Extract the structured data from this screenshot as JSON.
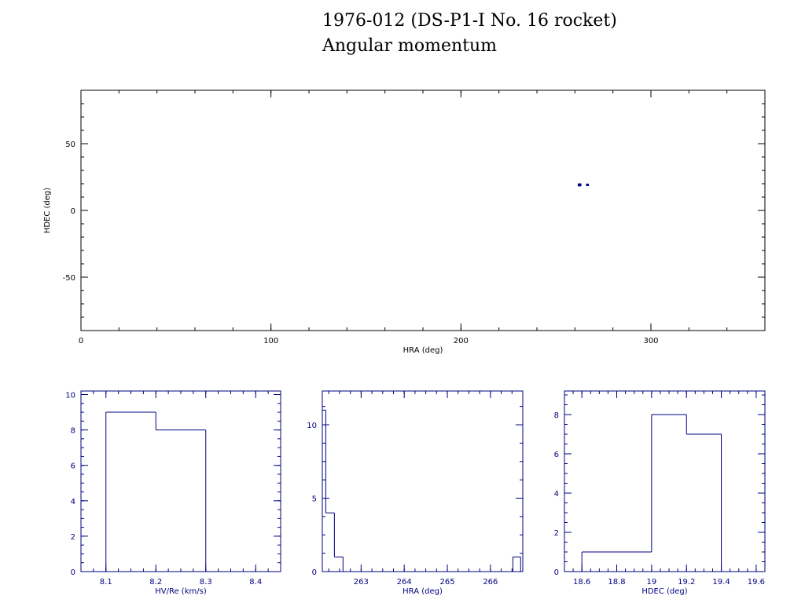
{
  "title": "1976-012 (DS-P1-I No. 16 rocket)",
  "subtitle": "Angular momentum",
  "colors": {
    "axis_main": "#000000",
    "axis_hist": "#000080",
    "data": "#000080"
  },
  "chart_data": [
    {
      "type": "scatter",
      "xlabel": "HRA (deg)",
      "ylabel": "HDEC (deg)",
      "xlim": [
        0,
        360
      ],
      "ylim": [
        -90,
        90
      ],
      "xticks": [
        0,
        100,
        200,
        300
      ],
      "yticks": [
        -50,
        0,
        50
      ],
      "points": [
        {
          "x": 262.1,
          "y": 19.0
        },
        {
          "x": 262.3,
          "y": 19.4
        },
        {
          "x": 262.5,
          "y": 19.1
        },
        {
          "x": 262.6,
          "y": 18.9
        },
        {
          "x": 262.8,
          "y": 19.3
        },
        {
          "x": 266.5,
          "y": 19.2
        },
        {
          "x": 266.7,
          "y": 19.1
        }
      ]
    },
    {
      "type": "bar",
      "xlabel": "HV/Re (km/s)",
      "xlim": [
        8.05,
        8.45
      ],
      "ylim": [
        0,
        10.2
      ],
      "xticks": [
        8.1,
        8.2,
        8.3,
        8.4
      ],
      "xtick_labels": [
        "8.1",
        "8.2",
        "8.3",
        "8.4"
      ],
      "yticks": [
        0,
        2,
        4,
        6,
        8,
        10
      ],
      "bins": [
        {
          "x0": 8.1,
          "x1": 8.2,
          "count": 9
        },
        {
          "x0": 8.2,
          "x1": 8.3,
          "count": 8
        }
      ]
    },
    {
      "type": "bar",
      "xlabel": "HRA (deg)",
      "xlim": [
        262.1,
        266.75
      ],
      "ylim": [
        0,
        12.3
      ],
      "xticks": [
        263,
        264,
        265,
        266
      ],
      "xtick_labels": [
        "263",
        "264",
        "265",
        "266"
      ],
      "yticks": [
        0,
        5,
        10
      ],
      "bins": [
        {
          "x0": 262.1,
          "x1": 262.18,
          "count": 11
        },
        {
          "x0": 262.18,
          "x1": 262.38,
          "count": 4
        },
        {
          "x0": 262.38,
          "x1": 262.58,
          "count": 1
        },
        {
          "x0": 266.52,
          "x1": 266.7,
          "count": 1
        }
      ]
    },
    {
      "type": "bar",
      "xlabel": "HDEC (deg)",
      "xlim": [
        18.5,
        19.65
      ],
      "ylim": [
        0,
        9.2
      ],
      "xticks": [
        18.6,
        18.8,
        19,
        19.2,
        19.4,
        19.6
      ],
      "xtick_labels": [
        "18.6",
        "18.8",
        "19",
        "19.2",
        "19.4",
        "19.6"
      ],
      "yticks": [
        0,
        2,
        4,
        6,
        8
      ],
      "bins": [
        {
          "x0": 18.6,
          "x1": 19.0,
          "count": 1
        },
        {
          "x0": 19.0,
          "x1": 19.2,
          "count": 8
        },
        {
          "x0": 19.2,
          "x1": 19.4,
          "count": 7
        }
      ]
    }
  ]
}
